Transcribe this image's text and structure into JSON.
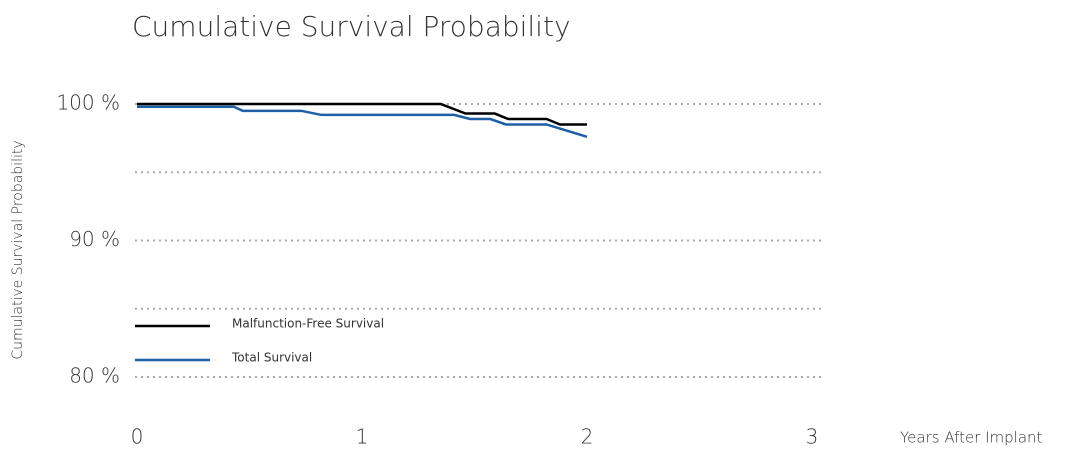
{
  "chart_data": {
    "type": "line",
    "title": "Cumulative Survival Probability",
    "x_label": "Years After Implant",
    "y_label": "Cumulative Survival Probability",
    "xlim": [
      0,
      3
    ],
    "xticks": [
      0,
      1,
      2,
      3
    ],
    "ylim": [
      80,
      100
    ],
    "yticks": [
      {
        "value": 80,
        "label": "80 %"
      },
      {
        "value": 90,
        "label": "90 %"
      },
      {
        "value": 100,
        "label": "100 %"
      }
    ],
    "ygrid": [
      80,
      85,
      90,
      95,
      100
    ],
    "grid": true,
    "legend": "lower left",
    "series": [
      {
        "name": "Malfunction-Free Survival",
        "color": "#000000",
        "x": [
          0,
          1.35,
          1.46,
          1.59,
          1.65,
          1.82,
          1.88,
          2.0
        ],
        "values": [
          100,
          100,
          99.3,
          99.3,
          98.9,
          98.9,
          98.5,
          98.5
        ]
      },
      {
        "name": "Total Survival",
        "color": "#1f5fa6",
        "x": [
          0,
          0.43,
          0.47,
          0.73,
          0.82,
          1.41,
          1.48,
          1.57,
          1.64,
          1.82,
          2.0
        ],
        "values": [
          99.8,
          99.8,
          99.5,
          99.5,
          99.2,
          99.2,
          98.9,
          98.9,
          98.5,
          98.5,
          97.6
        ]
      }
    ]
  }
}
